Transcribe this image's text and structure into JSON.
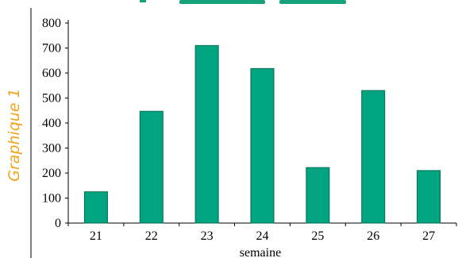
{
  "side_label": "Graphique 1",
  "colors": {
    "bar_fill": "#00a480",
    "bar_stroke": "#006b52",
    "axis": "#000000",
    "side_label": "#f3a21c",
    "top_banner": "#16a37b"
  },
  "chart_data": {
    "type": "bar",
    "title": "",
    "xlabel": "semaine",
    "ylabel": "",
    "categories": [
      "21",
      "22",
      "23",
      "24",
      "25",
      "26",
      "27"
    ],
    "values": [
      125,
      447,
      710,
      618,
      222,
      530,
      210
    ],
    "ylim": [
      0,
      800
    ],
    "yticks": [
      "0",
      "100",
      "200",
      "300",
      "400",
      "500",
      "600",
      "700",
      "800"
    ],
    "grid": false,
    "legend": "none"
  }
}
